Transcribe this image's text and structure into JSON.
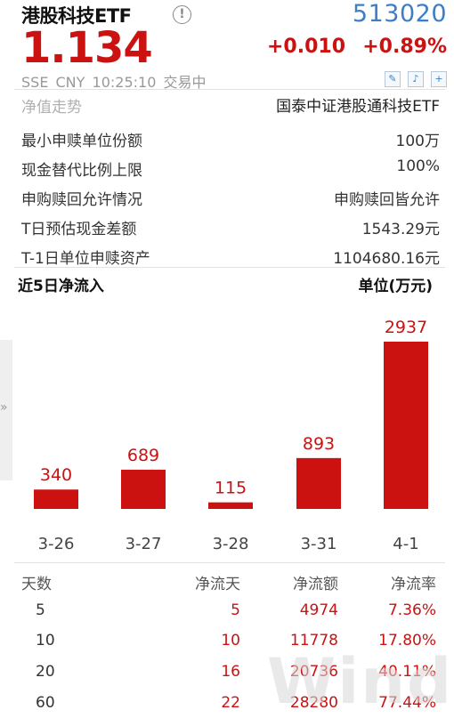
{
  "header": {
    "name": "港股科技ETF",
    "info_icon": "info-circle-icon",
    "code": "513020",
    "price": "1.134",
    "change": "+0.010",
    "change_pct": "+0.89%",
    "meta": "SSE  CNY  10:25:10  交易中",
    "tools": [
      "edit-icon",
      "bell-icon",
      "plus-icon"
    ],
    "up_color": "#cc1111",
    "code_color": "#3d7fc7"
  },
  "info": {
    "nav_label": "净值走势",
    "fund_name": "国泰中证港股通科技ETF",
    "rows": [
      {
        "label": "最小申赎单位份额",
        "value": "100万"
      },
      {
        "label": "现金替代比例上限",
        "value": "100%"
      },
      {
        "label": "申购赎回允许情况",
        "value": "申购赎回皆允许"
      },
      {
        "label": "T日预估现金差额",
        "value": "1543.29元"
      },
      {
        "label": "T-1日单位申赎资产",
        "value": "1104680.16元"
      }
    ]
  },
  "flow": {
    "title": "近5日净流入",
    "unit": "单位(万元)",
    "side_arrow": "»"
  },
  "chart_data": {
    "type": "bar",
    "categories": [
      "3-26",
      "3-27",
      "3-28",
      "3-31",
      "4-1"
    ],
    "values": [
      340,
      689,
      115,
      893,
      2937
    ],
    "data_labels": [
      "340",
      "689",
      "115",
      "893",
      "2937"
    ],
    "title": "近5日净流入",
    "ylabel": "单位(万元)",
    "ylim": [
      0,
      2937
    ],
    "bar_color": "#cc1111",
    "grid": false
  },
  "stats": {
    "headers": [
      "天数",
      "净流天",
      "净流额",
      "净流率"
    ],
    "rows": [
      [
        "5",
        "5",
        "4974",
        "7.36%"
      ],
      [
        "10",
        "10",
        "11778",
        "17.80%"
      ],
      [
        "20",
        "16",
        "20736",
        "40.11%"
      ],
      [
        "60",
        "22",
        "28280",
        "77.44%"
      ]
    ]
  },
  "watermark": "Wind"
}
